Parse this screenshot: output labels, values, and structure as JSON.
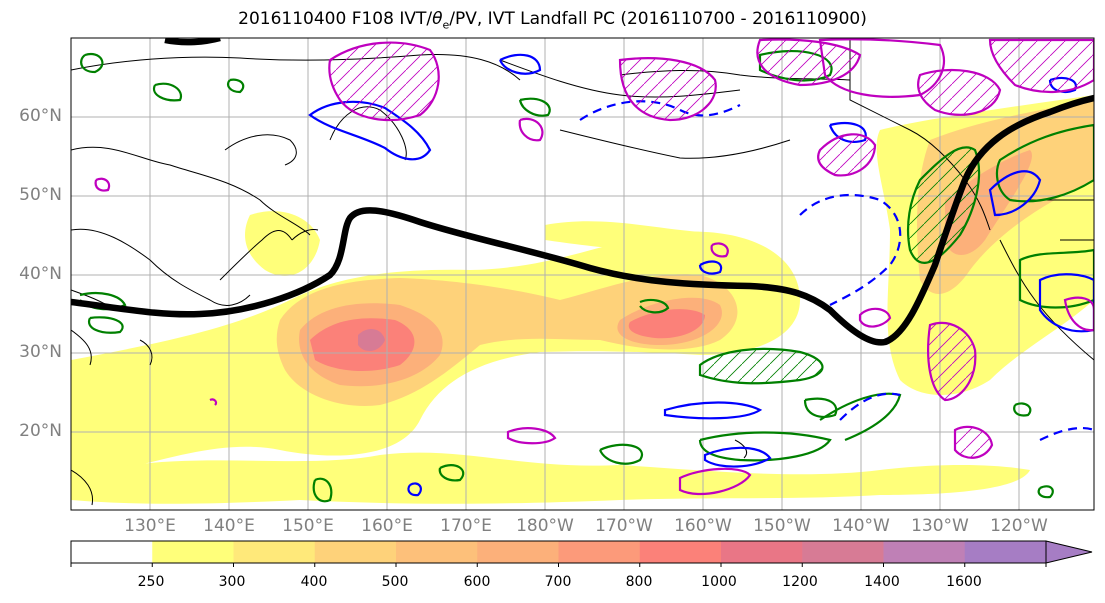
{
  "title": {
    "prefix": "2016110400 F108 IVT/",
    "theta": "θ",
    "theta_sub": "e",
    "suffix": "/PV, IVT Landfall PC (2016110700 - 2016110900)"
  },
  "lat_labels": [
    "60°N",
    "50°N",
    "40°N",
    "30°N",
    "20°N"
  ],
  "lon_labels": [
    "130°E",
    "140°E",
    "150°E",
    "160°E",
    "170°E",
    "180°W",
    "170°W",
    "160°W",
    "150°W",
    "140°W",
    "130°W",
    "120°W"
  ],
  "colorbar": {
    "levels": [
      "250",
      "300",
      "400",
      "500",
      "600",
      "700",
      "800",
      "1000",
      "1200",
      "1400",
      "1600"
    ],
    "colors": [
      "#ffffff",
      "#ffff7a",
      "#ffe97a",
      "#fed27a",
      "#fdc07a",
      "#fcb07a",
      "#fc9a7a",
      "#fb8179",
      "#e97686",
      "#d77b95",
      "#bf80b6",
      "#a67dc4"
    ],
    "extend": "max"
  },
  "contour_colors": {
    "jet_axis": "#000000",
    "theta_e": "#008000",
    "pv_negative": "#0000ff",
    "pv_positive": "#bf00bf"
  }
}
